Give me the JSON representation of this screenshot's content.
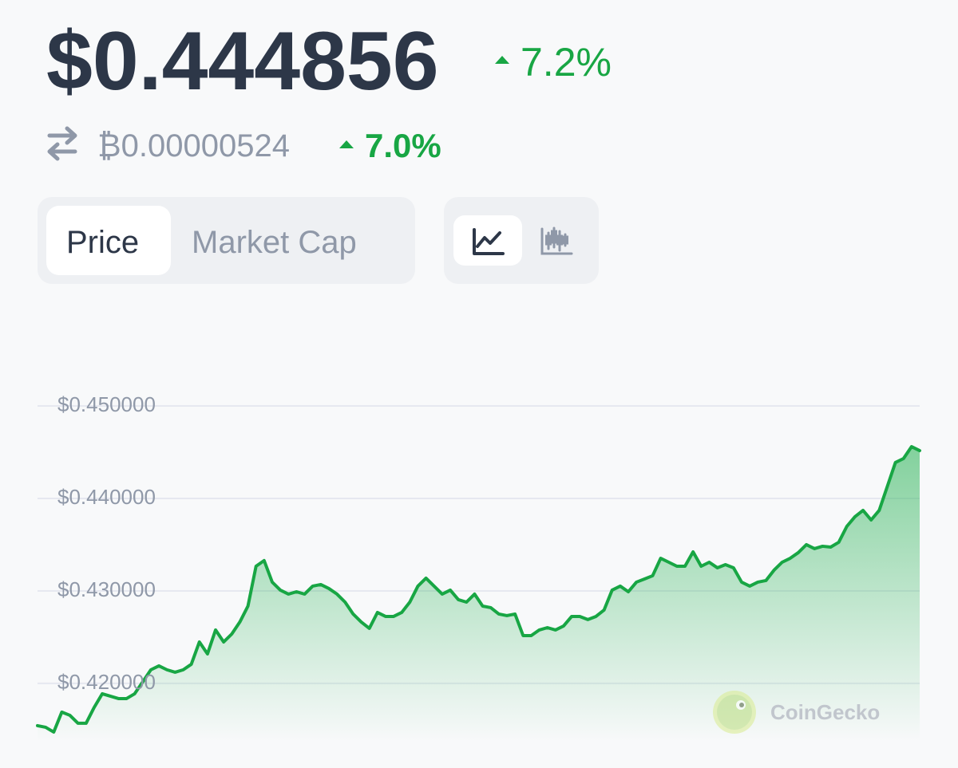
{
  "header": {
    "price": "$0.444856",
    "price_change": "7.2%",
    "btc_price": "₿0.00000524",
    "btc_change": "7.0%"
  },
  "tabs": [
    "Price",
    "Market Cap"
  ],
  "watermark": "CoinGecko",
  "chart_data": {
    "type": "line",
    "color": "#18a644",
    "grid": true,
    "ylim": [
      0.4137,
      0.45
    ],
    "yticks": [
      {
        "value": 0.42,
        "label": "$0.420000"
      },
      {
        "value": 0.43,
        "label": "$0.430000"
      },
      {
        "value": 0.44,
        "label": "$0.440000"
      },
      {
        "value": 0.45,
        "label": "$0.450000"
      }
    ],
    "values": [
      0.41543,
      0.41526,
      0.41474,
      0.4169,
      0.41655,
      0.41569,
      0.41569,
      0.41741,
      0.41888,
      0.41862,
      0.41836,
      0.41836,
      0.41888,
      0.42017,
      0.42147,
      0.4219,
      0.42147,
      0.42121,
      0.42147,
      0.42207,
      0.42448,
      0.42319,
      0.42578,
      0.42448,
      0.42534,
      0.42664,
      0.42836,
      0.43267,
      0.43328,
      0.43095,
      0.43009,
      0.42966,
      0.42991,
      0.42966,
      0.43052,
      0.43069,
      0.43026,
      0.42966,
      0.42879,
      0.4275,
      0.42664,
      0.42595,
      0.42767,
      0.42724,
      0.42724,
      0.42767,
      0.42879,
      0.43052,
      0.43138,
      0.43052,
      0.42966,
      0.43009,
      0.42905,
      0.42879,
      0.42966,
      0.42836,
      0.42819,
      0.4275,
      0.42733,
      0.4275,
      0.42517,
      0.42517,
      0.42578,
      0.42603,
      0.42578,
      0.42621,
      0.42724,
      0.42724,
      0.4269,
      0.42724,
      0.42793,
      0.43009,
      0.43052,
      0.42991,
      0.43095,
      0.43129,
      0.43164,
      0.43353,
      0.4331,
      0.43267,
      0.43267,
      0.43422,
      0.43267,
      0.4331,
      0.4325,
      0.43284,
      0.4325,
      0.43095,
      0.43052,
      0.43095,
      0.43112,
      0.43224,
      0.4331,
      0.43353,
      0.43414,
      0.435,
      0.43457,
      0.43483,
      0.43474,
      0.43526,
      0.43698,
      0.43802,
      0.43871,
      0.43767,
      0.43871,
      0.44129,
      0.44388,
      0.44431,
      0.4456,
      0.44517
    ]
  }
}
